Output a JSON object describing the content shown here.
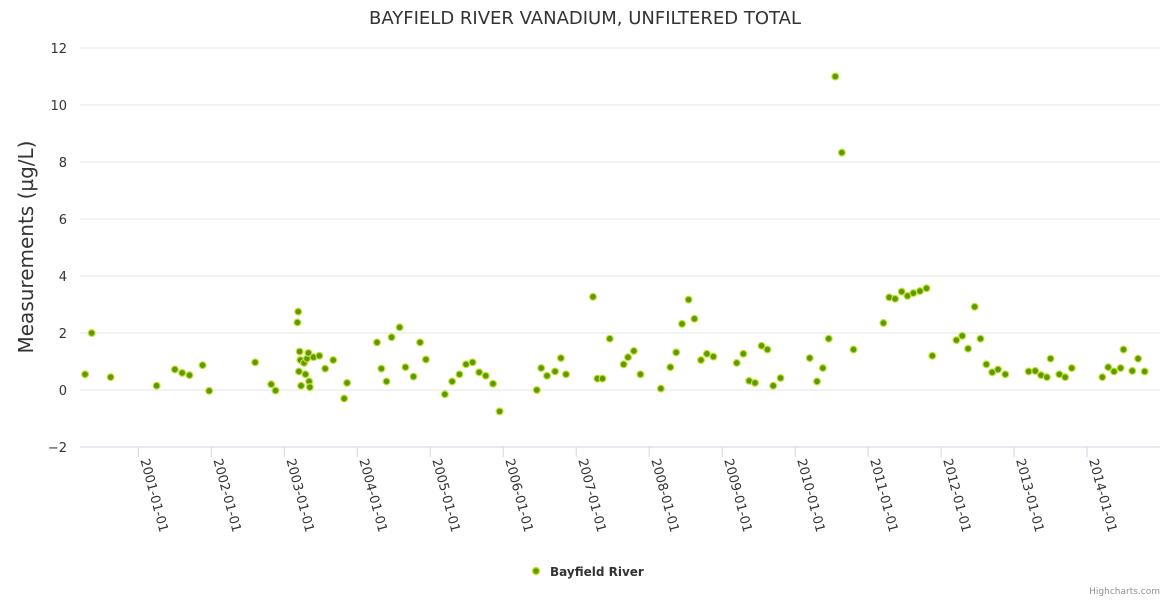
{
  "chart_data": {
    "type": "scatter",
    "title": "BAYFIELD RIVER VANADIUM, UNFILTERED TOTAL",
    "ylabel": "Measurements (µg/L)",
    "xlabel": "",
    "ylim": [
      -2,
      12
    ],
    "yticks": [
      -2,
      0,
      2,
      4,
      6,
      8,
      10,
      12
    ],
    "xlim": [
      2000.2,
      2015.0
    ],
    "xticks": [
      {
        "value": 2001.0,
        "label": "2001-01-01"
      },
      {
        "value": 2002.0,
        "label": "2002-01-01"
      },
      {
        "value": 2003.0,
        "label": "2003-01-01"
      },
      {
        "value": 2004.0,
        "label": "2004-01-01"
      },
      {
        "value": 2005.0,
        "label": "2005-01-01"
      },
      {
        "value": 2006.0,
        "label": "2006-01-01"
      },
      {
        "value": 2007.0,
        "label": "2007-01-01"
      },
      {
        "value": 2008.0,
        "label": "2008-01-01"
      },
      {
        "value": 2009.0,
        "label": "2009-01-01"
      },
      {
        "value": 2010.0,
        "label": "2010-01-01"
      },
      {
        "value": 2011.0,
        "label": "2011-01-01"
      },
      {
        "value": 2012.0,
        "label": "2012-01-01"
      },
      {
        "value": 2013.0,
        "label": "2013-01-01"
      },
      {
        "value": 2014.0,
        "label": "2014-01-01"
      }
    ],
    "grid": true,
    "legend_position": "bottom-center",
    "series": [
      {
        "name": "Bayfield River",
        "color": "#5a9a08",
        "border_color": "#c8e030",
        "points": [
          [
            2000.27,
            0.55
          ],
          [
            2000.36,
            2.0
          ],
          [
            2000.62,
            0.45
          ],
          [
            2001.25,
            0.15
          ],
          [
            2001.5,
            0.72
          ],
          [
            2001.6,
            0.6
          ],
          [
            2001.7,
            0.52
          ],
          [
            2001.88,
            0.87
          ],
          [
            2001.97,
            -0.03
          ],
          [
            2002.6,
            0.97
          ],
          [
            2002.82,
            0.2
          ],
          [
            2002.88,
            -0.02
          ],
          [
            2003.18,
            2.37
          ],
          [
            2003.19,
            2.75
          ],
          [
            2003.2,
            0.65
          ],
          [
            2003.21,
            1.35
          ],
          [
            2003.22,
            1.05
          ],
          [
            2003.23,
            0.15
          ],
          [
            2003.27,
            0.95
          ],
          [
            2003.29,
            0.55
          ],
          [
            2003.31,
            1.1
          ],
          [
            2003.33,
            1.3
          ],
          [
            2003.34,
            0.3
          ],
          [
            2003.35,
            0.1
          ],
          [
            2003.4,
            1.15
          ],
          [
            2003.48,
            1.2
          ],
          [
            2003.56,
            0.75
          ],
          [
            2003.67,
            1.05
          ],
          [
            2003.82,
            -0.3
          ],
          [
            2003.86,
            0.25
          ],
          [
            2004.27,
            1.67
          ],
          [
            2004.33,
            0.75
          ],
          [
            2004.4,
            0.3
          ],
          [
            2004.47,
            1.85
          ],
          [
            2004.58,
            2.2
          ],
          [
            2004.66,
            0.8
          ],
          [
            2004.77,
            0.47
          ],
          [
            2004.86,
            1.67
          ],
          [
            2004.94,
            1.07
          ],
          [
            2005.2,
            -0.15
          ],
          [
            2005.3,
            0.3
          ],
          [
            2005.4,
            0.55
          ],
          [
            2005.49,
            0.9
          ],
          [
            2005.58,
            0.97
          ],
          [
            2005.67,
            0.62
          ],
          [
            2005.76,
            0.5
          ],
          [
            2005.86,
            0.22
          ],
          [
            2005.95,
            -0.75
          ],
          [
            2006.46,
            0.0
          ],
          [
            2006.52,
            0.77
          ],
          [
            2006.6,
            0.5
          ],
          [
            2006.71,
            0.65
          ],
          [
            2006.79,
            1.12
          ],
          [
            2006.86,
            0.55
          ],
          [
            2007.23,
            3.27
          ],
          [
            2007.29,
            0.4
          ],
          [
            2007.36,
            0.4
          ],
          [
            2007.46,
            1.8
          ],
          [
            2007.65,
            0.9
          ],
          [
            2007.71,
            1.15
          ],
          [
            2007.79,
            1.37
          ],
          [
            2007.88,
            0.55
          ],
          [
            2008.16,
            0.05
          ],
          [
            2008.29,
            0.8
          ],
          [
            2008.37,
            1.32
          ],
          [
            2008.45,
            2.32
          ],
          [
            2008.54,
            3.17
          ],
          [
            2008.62,
            2.5
          ],
          [
            2008.71,
            1.05
          ],
          [
            2008.79,
            1.27
          ],
          [
            2008.88,
            1.17
          ],
          [
            2009.2,
            0.95
          ],
          [
            2009.29,
            1.27
          ],
          [
            2009.37,
            0.32
          ],
          [
            2009.45,
            0.25
          ],
          [
            2009.54,
            1.55
          ],
          [
            2009.62,
            1.42
          ],
          [
            2009.7,
            0.15
          ],
          [
            2009.8,
            0.42
          ],
          [
            2010.2,
            1.12
          ],
          [
            2010.3,
            0.3
          ],
          [
            2010.38,
            0.77
          ],
          [
            2010.46,
            1.8
          ],
          [
            2010.55,
            11.0
          ],
          [
            2010.64,
            8.33
          ],
          [
            2010.8,
            1.42
          ],
          [
            2011.21,
            2.35
          ],
          [
            2011.29,
            3.25
          ],
          [
            2011.37,
            3.2
          ],
          [
            2011.46,
            3.45
          ],
          [
            2011.54,
            3.3
          ],
          [
            2011.62,
            3.4
          ],
          [
            2011.71,
            3.47
          ],
          [
            2011.8,
            3.57
          ],
          [
            2011.88,
            1.2
          ],
          [
            2012.21,
            1.75
          ],
          [
            2012.29,
            1.9
          ],
          [
            2012.37,
            1.45
          ],
          [
            2012.46,
            2.92
          ],
          [
            2012.54,
            1.8
          ],
          [
            2012.62,
            0.9
          ],
          [
            2012.7,
            0.62
          ],
          [
            2012.78,
            0.72
          ],
          [
            2012.88,
            0.55
          ],
          [
            2013.2,
            0.65
          ],
          [
            2013.29,
            0.67
          ],
          [
            2013.37,
            0.52
          ],
          [
            2013.45,
            0.45
          ],
          [
            2013.5,
            1.1
          ],
          [
            2013.62,
            0.55
          ],
          [
            2013.7,
            0.45
          ],
          [
            2013.79,
            0.77
          ],
          [
            2014.21,
            0.45
          ],
          [
            2014.29,
            0.8
          ],
          [
            2014.37,
            0.65
          ],
          [
            2014.46,
            0.77
          ],
          [
            2014.5,
            1.42
          ],
          [
            2014.62,
            0.67
          ],
          [
            2014.7,
            1.1
          ],
          [
            2014.79,
            0.65
          ]
        ]
      }
    ]
  },
  "credits": "Highcharts.com"
}
